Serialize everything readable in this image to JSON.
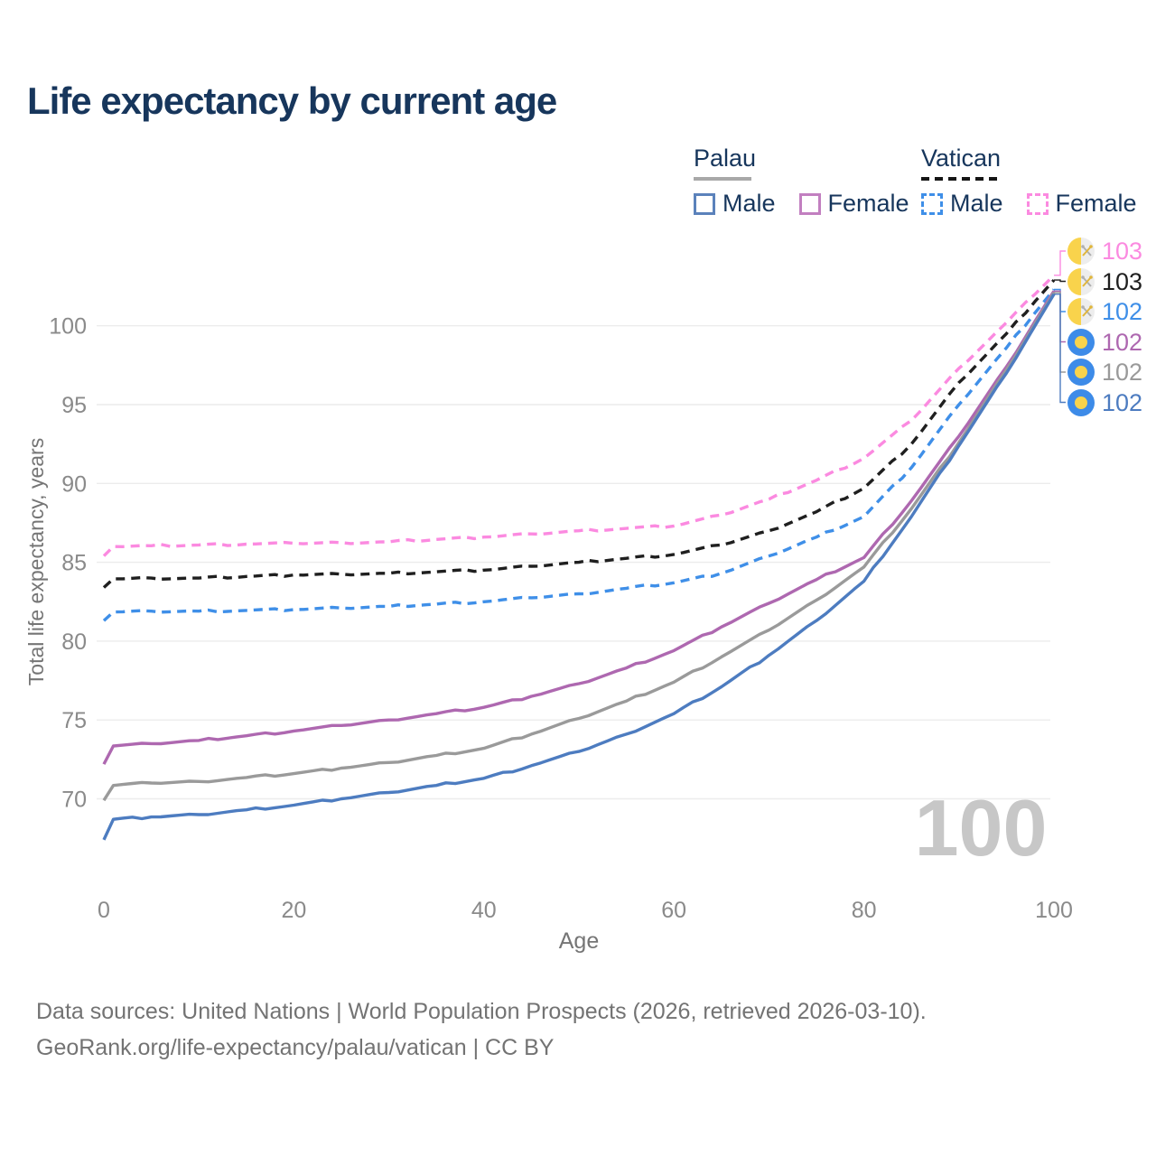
{
  "title": "Life expectancy by current age",
  "legend": {
    "groups": [
      {
        "country": "Palau",
        "line_style": "solid",
        "underline_color": "#a8a8a8",
        "items": [
          {
            "label": "Male",
            "color": "#5b82bb",
            "dashed": false
          },
          {
            "label": "Female",
            "color": "#c27fc0",
            "dashed": false
          }
        ]
      },
      {
        "country": "Vatican",
        "line_style": "dashed",
        "underline_color": "#151515",
        "items": [
          {
            "label": "Male",
            "color": "#3f8fe8",
            "dashed": true
          },
          {
            "label": "Female",
            "color": "#fb8ae0",
            "dashed": true
          }
        ]
      }
    ]
  },
  "chart_data": {
    "type": "line",
    "title": "Life expectancy by current age",
    "xlabel": "Age",
    "ylabel": "Total life expectancy, years",
    "xlim": [
      0,
      100
    ],
    "ylim": [
      65.5,
      104
    ],
    "x_ticks": [
      0,
      20,
      40,
      60,
      80,
      100
    ],
    "y_ticks": [
      70,
      75,
      80,
      85,
      90,
      95,
      100
    ],
    "grid": "horizontal-only",
    "legend_position": "top-right",
    "watermark": "100",
    "x": [
      0,
      1,
      5,
      10,
      15,
      20,
      25,
      30,
      35,
      40,
      45,
      50,
      55,
      60,
      65,
      70,
      75,
      80,
      85,
      90,
      95,
      100
    ],
    "series": [
      {
        "name": "Vatican Female",
        "country": "Vatican",
        "sex": "Female",
        "color": "#fb8ae0",
        "dashed": true,
        "end_label": "103",
        "flag": "vatican",
        "values": [
          85.4,
          86.0,
          86.05,
          86.1,
          86.15,
          86.2,
          86.25,
          86.3,
          86.45,
          86.6,
          86.8,
          87.0,
          87.15,
          87.3,
          88.0,
          89.0,
          90.2,
          91.6,
          94.0,
          97.3,
          100.2,
          103.2
        ]
      },
      {
        "name": "Vatican Both sexes",
        "country": "Vatican",
        "sex": "Both",
        "color": "#1f1f1f",
        "dashed": true,
        "end_label": "103",
        "flag": "vatican",
        "values": [
          83.4,
          83.95,
          84.0,
          84.0,
          84.1,
          84.2,
          84.25,
          84.3,
          84.4,
          84.5,
          84.75,
          85.0,
          85.25,
          85.5,
          86.1,
          87.0,
          88.2,
          89.7,
          92.5,
          96.4,
          99.5,
          102.9
        ]
      },
      {
        "name": "Vatican Male",
        "country": "Vatican",
        "sex": "Male",
        "color": "#3f8fe8",
        "dashed": true,
        "end_label": "102",
        "flag": "vatican",
        "values": [
          81.3,
          81.85,
          81.9,
          81.9,
          81.95,
          82.0,
          82.1,
          82.2,
          82.35,
          82.5,
          82.75,
          83.0,
          83.35,
          83.7,
          84.3,
          85.4,
          86.6,
          87.9,
          91.0,
          95.0,
          98.6,
          102.3
        ]
      },
      {
        "name": "Palau Female",
        "country": "Palau",
        "sex": "Female",
        "color": "#ae68b0",
        "dashed": false,
        "end_label": "102",
        "flag": "palau",
        "values": [
          72.2,
          73.35,
          73.5,
          73.7,
          74.0,
          74.3,
          74.65,
          75.0,
          75.4,
          75.8,
          76.5,
          77.3,
          78.3,
          79.4,
          80.9,
          82.4,
          83.9,
          85.3,
          88.9,
          93.0,
          97.4,
          102.2
        ]
      },
      {
        "name": "Palau Both sexes",
        "country": "Palau",
        "sex": "Both",
        "color": "#9a9a9a",
        "dashed": false,
        "end_label": "102",
        "flag": "palau",
        "values": [
          69.9,
          70.85,
          71.0,
          71.1,
          71.35,
          71.6,
          71.95,
          72.3,
          72.75,
          73.2,
          74.1,
          75.1,
          76.2,
          77.4,
          79.0,
          80.7,
          82.6,
          84.7,
          88.4,
          92.6,
          97.2,
          102.1
        ]
      },
      {
        "name": "Palau Male",
        "country": "Palau",
        "sex": "Male",
        "color": "#4d7cc0",
        "dashed": false,
        "end_label": "102",
        "flag": "palau",
        "values": [
          67.4,
          68.7,
          68.85,
          69.0,
          69.3,
          69.6,
          70.0,
          70.4,
          70.85,
          71.3,
          72.1,
          73.0,
          74.1,
          75.4,
          77.1,
          79.1,
          81.3,
          83.8,
          87.9,
          92.4,
          97.0,
          102.0
        ]
      }
    ]
  },
  "flags": {
    "palau": {
      "bg": "#3d8be8",
      "disc": "#f9d34c"
    },
    "vatican": {
      "left": "#f9d34c",
      "right": "#ededed",
      "key_gray": "#b0b0b0",
      "key_yellow": "#e0b63c"
    }
  },
  "colors": {
    "title": "#17365c",
    "axis_text": "#8a8a8a",
    "axis_title": "#757575",
    "grid": "#ececec",
    "watermark": "#c7c7c7",
    "footer": "#737373"
  },
  "footer": {
    "line1": "Data sources: United Nations | World Population Prospects (2026, retrieved 2026-03-10).",
    "line2": "GeoRank.org/life-expectancy/palau/vatican | CC BY"
  }
}
